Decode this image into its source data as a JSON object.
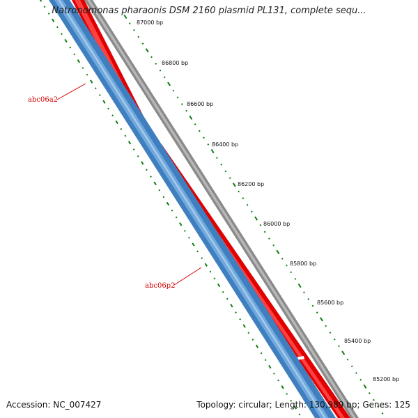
{
  "title": "Natronomonas pharaonis DSM 2160 plasmid PL131, complete sequ...",
  "footer": {
    "accession": "Accession: NC_007427",
    "summary": "Topology: circular; Length: 130,989 bp; Genes: 125"
  },
  "ticks": [
    "87000 bp",
    "86800 bp",
    "86600 bp",
    "86400 bp",
    "86200 bp",
    "86000 bp",
    "85800 bp",
    "85600 bp",
    "85400 bp",
    "85200 bp"
  ],
  "genes": [
    {
      "name": "abc06a2",
      "strand": "minus"
    },
    {
      "name": "abc06p2",
      "strand": "minus"
    }
  ],
  "colors": {
    "plus_strand": "#ff0000",
    "minus_strand": "#3f7fbf",
    "backbone": "#7f7f7f",
    "gc_ticks": "#0a7a0a",
    "gene_label": "#d40000"
  }
}
